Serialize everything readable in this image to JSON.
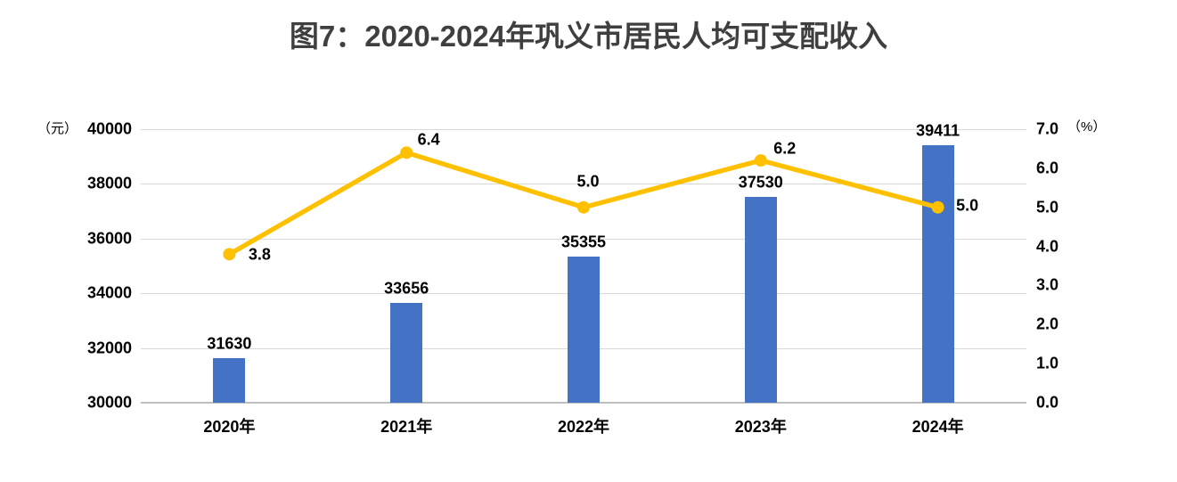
{
  "title": "图7：2020-2024年巩义市居民人均可支配收入",
  "left_axis": {
    "unit": "（元）",
    "min": 30000,
    "max": 40000,
    "ticks": [
      "40000",
      "38000",
      "36000",
      "34000",
      "32000",
      "30000"
    ]
  },
  "right_axis": {
    "unit": "（%）",
    "min": 0,
    "max": 7,
    "ticks": [
      "7.0",
      "6.0",
      "5.0",
      "4.0",
      "3.0",
      "2.0",
      "1.0",
      "0.0"
    ]
  },
  "chart_data": {
    "type": "bar",
    "title": "图7：2020-2024年巩义市居民人均可支配收入",
    "categories": [
      "2020年",
      "2021年",
      "2022年",
      "2023年",
      "2024年"
    ],
    "series": [
      {
        "name": "bar-series",
        "type": "bar",
        "axis": "left",
        "values": [
          31630,
          33656,
          35355,
          37530,
          39411
        ],
        "value_labels": [
          "31630",
          "33656",
          "35355",
          "37530",
          "39411"
        ],
        "color": "#4472c4"
      },
      {
        "name": "line-series",
        "type": "line",
        "axis": "right",
        "values": [
          3.8,
          6.4,
          5.0,
          6.2,
          5.0
        ],
        "value_labels": [
          "3.8",
          "6.4",
          "5.0",
          "6.2",
          "5.0"
        ],
        "color": "#ffc000"
      }
    ],
    "left_ylim": [
      30000,
      40000
    ],
    "right_ylim": [
      0,
      7
    ],
    "grid": true,
    "legend": false
  }
}
